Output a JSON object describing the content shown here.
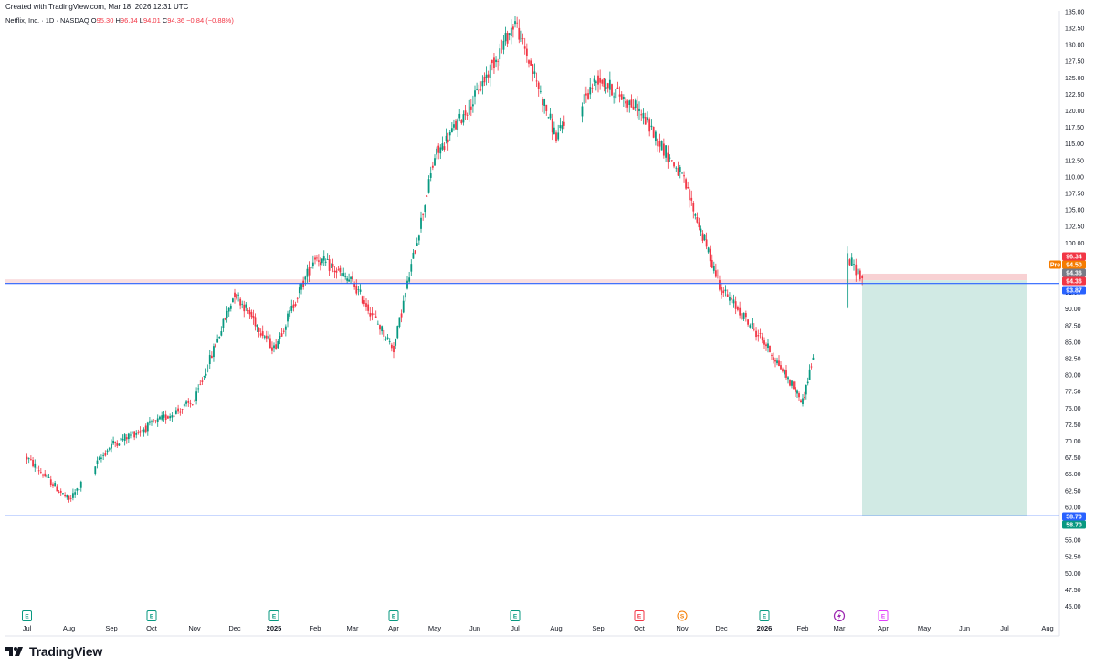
{
  "header": {
    "created_text": "Created with TradingView.com, Mar 18, 2026 12:31 UTC",
    "symbol": "Netflix, Inc. · 1D · NASDAQ",
    "o_label": "O",
    "o_value": "95.30",
    "h_label": "H",
    "h_value": "96.34",
    "l_label": "L",
    "l_value": "94.01",
    "c_label": "C",
    "c_value": "94.36",
    "change": "−0.84 (−0.88%)"
  },
  "footer": {
    "brand": "TradingView"
  },
  "colors": {
    "up": "#089981",
    "down": "#f23645",
    "line": "#2962ff",
    "stop_zone": "#f7c9cb",
    "target_zone": "#cfe9e3",
    "pre": "#f57c00",
    "grey": "#787b86"
  },
  "chart_data": {
    "type": "candlestick",
    "ylim": [
      45,
      135
    ],
    "y_ticks": [
      "45.00",
      "47.50",
      "50.00",
      "52.50",
      "55.00",
      "57.50",
      "60.00",
      "62.50",
      "65.00",
      "67.50",
      "70.00",
      "72.50",
      "75.00",
      "77.50",
      "80.00",
      "82.50",
      "85.00",
      "87.50",
      "90.00",
      "92.50",
      "95.00",
      "97.50",
      "100.00",
      "102.50",
      "105.00",
      "107.50",
      "110.00",
      "112.50",
      "115.00",
      "117.50",
      "120.00",
      "122.50",
      "125.00",
      "127.50",
      "130.00",
      "132.50",
      "135.00"
    ],
    "x_labels": [
      "Jul",
      "Aug",
      "Sep",
      "Oct",
      "Nov",
      "Dec",
      "2025",
      "Feb",
      "Mar",
      "Apr",
      "May",
      "Jun",
      "Jul",
      "Aug",
      "Sep",
      "Oct",
      "Nov",
      "Dec",
      "2026",
      "Feb",
      "Mar",
      "Apr",
      "May",
      "Jun",
      "Jul",
      "Aug"
    ],
    "x_bold": [
      "2025",
      "2026"
    ],
    "approx_path": [
      [
        "Jul 2024",
        67.5
      ],
      [
        "Aug 2024",
        61.0
      ],
      [
        "Sep 2024",
        69.5
      ],
      [
        "Oct 2024",
        72.5
      ],
      [
        "Nov 2024",
        76.0
      ],
      [
        "Dec 2024",
        92.5
      ],
      [
        "Jan 2025",
        84.0
      ],
      [
        "Feb 2025",
        98.0
      ],
      [
        "Mar 2025",
        94.0
      ],
      [
        "Apr 2025",
        84.0
      ],
      [
        "May 2025",
        113.0
      ],
      [
        "Jun 2025",
        122.0
      ],
      [
        "Jul 2025",
        133.5
      ],
      [
        "Aug 2025",
        116.0
      ],
      [
        "Sep 2025",
        125.0
      ],
      [
        "Oct 2025",
        120.0
      ],
      [
        "Nov 2025",
        110.0
      ],
      [
        "Dec 2025",
        93.0
      ],
      [
        "Jan 2026",
        85.0
      ],
      [
        "Feb 2026",
        76.0
      ],
      [
        "Mar 2026",
        99.5
      ],
      [
        "Mar 18 2026",
        94.36
      ]
    ],
    "hlines": [
      {
        "value": 93.87,
        "label": "93.87"
      },
      {
        "value": 58.7,
        "label": "58.70"
      }
    ],
    "position": {
      "entry": 94.36,
      "stop": 94.5,
      "target": 58.7
    },
    "price_badges": [
      {
        "value": 96.34,
        "label": "96.34",
        "color": "#f23645"
      },
      {
        "value": 94.5,
        "label": "94.50",
        "color": "#f57c00",
        "tag": "Pre"
      },
      {
        "value": 94.36,
        "label": "94.36",
        "color": "#787b86"
      },
      {
        "value": 94.36,
        "label": "94.36",
        "color": "#f23645"
      },
      {
        "value": 93.87,
        "label": "93.87",
        "color": "#2962ff"
      },
      {
        "value": 58.7,
        "label": "58.70",
        "color": "#2962ff"
      },
      {
        "value": 58.7,
        "label": "58.70",
        "color": "#089981"
      }
    ],
    "events": [
      {
        "month": "Jul 2024",
        "label": "E",
        "color": "#089981"
      },
      {
        "month": "Oct 2024",
        "label": "E",
        "color": "#089981"
      },
      {
        "month": "Jan 2025",
        "label": "E",
        "color": "#089981"
      },
      {
        "month": "Apr 2025",
        "label": "E",
        "color": "#089981"
      },
      {
        "month": "Jul 2025",
        "label": "E",
        "color": "#089981"
      },
      {
        "month": "Oct 2025",
        "label": "E",
        "color": "#f23645"
      },
      {
        "month": "Nov 2025",
        "label": "S",
        "color": "#f57c00"
      },
      {
        "month": "Jan 2026",
        "label": "E",
        "color": "#089981"
      },
      {
        "month": "Mar 2026",
        "label": "",
        "color": "#9c27b0"
      },
      {
        "month": "Apr 2026",
        "label": "E",
        "color": "#e040fb"
      }
    ]
  }
}
